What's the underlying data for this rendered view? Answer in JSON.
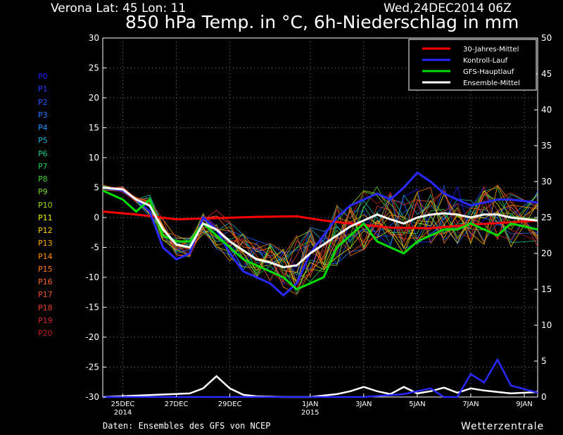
{
  "header": {
    "location": "Verona   Lat: 45 Lon: 11",
    "run": "Wed,24DEC2014 06Z",
    "title": "850 hPa Temp. in °C, 6h-Niederschlag in mm"
  },
  "footer": {
    "source": "Daten: Ensembles des GFS von NCEP",
    "brand": "Wetterzentrale"
  },
  "members": [
    {
      "name": "P0",
      "color": "#1a1aff"
    },
    {
      "name": "P1",
      "color": "#1e3cff"
    },
    {
      "name": "P2",
      "color": "#1f5aff"
    },
    {
      "name": "P3",
      "color": "#1e78ff"
    },
    {
      "name": "P4",
      "color": "#1e96ff"
    },
    {
      "name": "P5",
      "color": "#19b4d2"
    },
    {
      "name": "P6",
      "color": "#19c88c"
    },
    {
      "name": "P7",
      "color": "#1ed250"
    },
    {
      "name": "P8",
      "color": "#46d232"
    },
    {
      "name": "P9",
      "color": "#78d21e"
    },
    {
      "name": "P10",
      "color": "#a0dc14"
    },
    {
      "name": "P11",
      "color": "#f0f000"
    },
    {
      "name": "P12",
      "color": "#ffd200"
    },
    {
      "name": "P13",
      "color": "#ffaa00"
    },
    {
      "name": "P14",
      "color": "#ff8c00"
    },
    {
      "name": "P15",
      "color": "#ff7814"
    },
    {
      "name": "P16",
      "color": "#ff6428"
    },
    {
      "name": "P17",
      "color": "#f05028"
    },
    {
      "name": "P18",
      "color": "#e63c28"
    },
    {
      "name": "P19",
      "color": "#d22828"
    },
    {
      "name": "P20",
      "color": "#be1e1e"
    }
  ],
  "chart_data": {
    "type": "line",
    "x_range": [
      "2014-12-24 06Z",
      "2015-01-09 12Z"
    ],
    "y_left": {
      "unit": "°C",
      "ylim": [
        -30,
        30
      ],
      "ticks": [
        30,
        25,
        20,
        15,
        10,
        5,
        0,
        -5,
        -10,
        -15,
        -20,
        -25,
        -30
      ]
    },
    "y_right": {
      "unit": "mm",
      "ylim": [
        0,
        50
      ],
      "ticks": [
        50,
        45,
        40,
        35,
        30,
        25,
        20,
        15,
        10,
        5,
        0
      ]
    },
    "x_ticks": [
      {
        "date": "2014-12-25",
        "label": "25DEC",
        "sub": "2014"
      },
      {
        "date": "2014-12-27",
        "label": "27DEC",
        "sub": ""
      },
      {
        "date": "2014-12-29",
        "label": "29DEC",
        "sub": ""
      },
      {
        "date": "2015-01-01",
        "label": "1JAN",
        "sub": "2015"
      },
      {
        "date": "2015-01-03",
        "label": "3JAN",
        "sub": ""
      },
      {
        "date": "2015-01-05",
        "label": "5JAN",
        "sub": ""
      },
      {
        "date": "2015-01-07",
        "label": "7JAN",
        "sub": ""
      },
      {
        "date": "2015-01-09",
        "label": "9JAN",
        "sub": ""
      }
    ],
    "grid": true,
    "legend_position": "top-right",
    "series": [
      {
        "name": "30-Jahres-Mittel",
        "color": "#ff0000",
        "axis": "temp",
        "x": [
          "2014-12-24 06Z",
          "2014-12-25 12Z",
          "2014-12-27 00Z",
          "2014-12-28 12Z",
          "2014-12-30 00Z",
          "2014-12-31 12Z",
          "2015-01-01 12Z",
          "2015-01-02 12Z",
          "2015-01-04 00Z",
          "2015-01-05 12Z",
          "2015-01-07 00Z",
          "2015-01-08 12Z",
          "2015-01-09 12Z"
        ],
        "y": [
          1.0,
          0.5,
          -0.3,
          -0.1,
          0.1,
          0.2,
          -0.5,
          -1.0,
          -1.7,
          -1.8,
          -1.2,
          -0.8,
          -0.5
        ]
      },
      {
        "name": "Kontroll-Lauf",
        "color": "#2828ff",
        "axis": "temp",
        "x": [
          "2014-12-24 06Z",
          "2014-12-25 00Z",
          "2014-12-25 12Z",
          "2014-12-26 00Z",
          "2014-12-26 12Z",
          "2014-12-27 00Z",
          "2014-12-27 12Z",
          "2014-12-28 00Z",
          "2014-12-28 12Z",
          "2014-12-29 00Z",
          "2014-12-29 12Z",
          "2014-12-30 00Z",
          "2014-12-30 12Z",
          "2014-12-31 00Z",
          "2014-12-31 12Z",
          "2015-01-01 00Z",
          "2015-01-01 12Z",
          "2015-01-02 00Z",
          "2015-01-02 12Z",
          "2015-01-03 00Z",
          "2015-01-03 12Z",
          "2015-01-04 00Z",
          "2015-01-04 12Z",
          "2015-01-05 00Z",
          "2015-01-05 12Z",
          "2015-01-06 00Z",
          "2015-01-06 12Z",
          "2015-01-07 00Z",
          "2015-01-07 12Z",
          "2015-01-08 00Z",
          "2015-01-08 12Z",
          "2015-01-09 12Z"
        ],
        "y": [
          5,
          4.5,
          3,
          1,
          -5,
          -7,
          -6,
          0,
          -2,
          -6,
          -9,
          -10,
          -11,
          -13,
          -11,
          -6,
          -3,
          0,
          2,
          3,
          4,
          3,
          5,
          7.5,
          6,
          4,
          3,
          2,
          2.5,
          3,
          3,
          2.5
        ]
      },
      {
        "name": "GFS-Hauptlauf",
        "color": "#00dc00",
        "axis": "temp",
        "x": [
          "2014-12-24 06Z",
          "2014-12-25 00Z",
          "2014-12-25 12Z",
          "2014-12-26 00Z",
          "2014-12-26 12Z",
          "2014-12-27 00Z",
          "2014-12-27 12Z",
          "2014-12-28 00Z",
          "2014-12-28 12Z",
          "2014-12-29 00Z",
          "2014-12-29 12Z",
          "2014-12-30 00Z",
          "2014-12-30 12Z",
          "2014-12-31 00Z",
          "2014-12-31 12Z",
          "2015-01-01 00Z",
          "2015-01-01 12Z",
          "2015-01-02 00Z",
          "2015-01-02 12Z",
          "2015-01-03 00Z",
          "2015-01-03 12Z",
          "2015-01-04 00Z",
          "2015-01-04 12Z",
          "2015-01-05 00Z",
          "2015-01-05 12Z",
          "2015-01-06 00Z",
          "2015-01-06 12Z",
          "2015-01-07 00Z",
          "2015-01-07 12Z",
          "2015-01-08 00Z",
          "2015-01-08 12Z",
          "2015-01-09 12Z"
        ],
        "y": [
          4.5,
          3,
          1,
          3,
          -3,
          -4,
          -4,
          -1,
          -3,
          -5,
          -7,
          -8,
          -9,
          -10,
          -12,
          -11,
          -10,
          -5,
          -3,
          -1,
          -4,
          -5,
          -6,
          -4,
          -3,
          -2,
          -2,
          -1,
          -2,
          -3,
          -1,
          -2
        ]
      },
      {
        "name": "Ensemble-Mittel",
        "color": "#ffffff",
        "axis": "temp",
        "x": [
          "2014-12-24 06Z",
          "2014-12-25 00Z",
          "2014-12-25 12Z",
          "2014-12-26 00Z",
          "2014-12-26 12Z",
          "2014-12-27 00Z",
          "2014-12-27 12Z",
          "2014-12-28 00Z",
          "2014-12-28 12Z",
          "2014-12-29 00Z",
          "2014-12-29 12Z",
          "2014-12-30 00Z",
          "2014-12-30 12Z",
          "2014-12-31 00Z",
          "2014-12-31 12Z",
          "2015-01-01 00Z",
          "2015-01-01 12Z",
          "2015-01-02 00Z",
          "2015-01-02 12Z",
          "2015-01-03 00Z",
          "2015-01-03 12Z",
          "2015-01-04 00Z",
          "2015-01-04 12Z",
          "2015-01-05 00Z",
          "2015-01-05 12Z",
          "2015-01-06 00Z",
          "2015-01-06 12Z",
          "2015-01-07 00Z",
          "2015-01-07 12Z",
          "2015-01-08 00Z",
          "2015-01-08 12Z",
          "2015-01-09 12Z"
        ],
        "y": [
          5,
          4.7,
          3,
          2,
          -2,
          -4.5,
          -5,
          -1,
          -2,
          -4,
          -5.5,
          -7,
          -7.5,
          -8.3,
          -8,
          -6,
          -4.5,
          -3,
          -1.5,
          -0.5,
          0.5,
          -0.3,
          -1,
          0,
          0.5,
          0.7,
          0.5,
          0,
          0.5,
          0.5,
          0,
          -0.5
        ]
      },
      {
        "name": "Ensemble-Mittel Niederschlag",
        "color": "#ffffff",
        "axis": "precip",
        "x": [
          "2014-12-24 06Z",
          "2014-12-27 12Z",
          "2014-12-28 00Z",
          "2014-12-28 12Z",
          "2014-12-29 00Z",
          "2014-12-29 12Z",
          "2014-12-30 00Z",
          "2014-12-31 00Z",
          "2015-01-01 00Z",
          "2015-01-02 00Z",
          "2015-01-02 12Z",
          "2015-01-03 00Z",
          "2015-01-03 12Z",
          "2015-01-04 00Z",
          "2015-01-04 12Z",
          "2015-01-05 00Z",
          "2015-01-05 12Z",
          "2015-01-06 00Z",
          "2015-01-06 12Z",
          "2015-01-07 00Z",
          "2015-01-07 12Z",
          "2015-01-08 00Z",
          "2015-01-08 12Z",
          "2015-01-09 12Z"
        ],
        "y": [
          0,
          0.5,
          1.2,
          2.9,
          1.2,
          0.3,
          0.1,
          0,
          0,
          0.4,
          0.8,
          1.4,
          0.8,
          0.4,
          1.4,
          0.5,
          0.8,
          1.3,
          0.6,
          1.2,
          0.9,
          0.7,
          0.5,
          0.7
        ]
      },
      {
        "name": "Kontroll-Lauf Niederschlag",
        "color": "#2828ff",
        "axis": "precip",
        "x": [
          "2014-12-24 06Z",
          "2015-01-03 00Z",
          "2015-01-04 12Z",
          "2015-01-05 12Z",
          "2015-01-06 00Z",
          "2015-01-06 12Z",
          "2015-01-07 00Z",
          "2015-01-07 12Z",
          "2015-01-08 00Z",
          "2015-01-08 12Z",
          "2015-01-09 12Z"
        ],
        "y": [
          0,
          0,
          0.4,
          1.2,
          0,
          0,
          3.2,
          2,
          5.2,
          1.6,
          0.6
        ]
      }
    ]
  }
}
